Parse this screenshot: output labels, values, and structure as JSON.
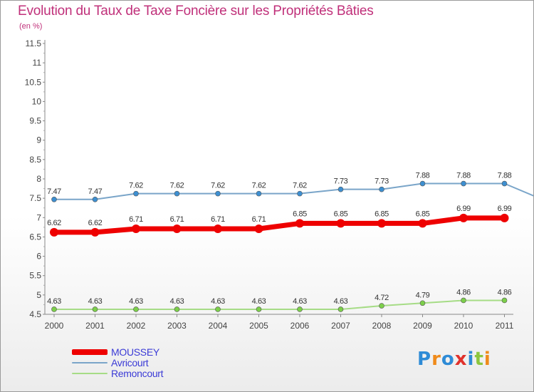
{
  "title": "Evolution du Taux de Taxe Foncière sur les Propriétés Bâties",
  "subtitle": "(en %)",
  "logo_text": "Proxiti",
  "colors": {
    "title": "#c0307a",
    "mousse": "#ee0000",
    "avricourt": "#7aa5c9",
    "remoncourt": "#a6dc86",
    "legend_text": "#3b3bd6"
  },
  "chart_data": {
    "type": "line",
    "title": "Evolution du Taux de Taxe Foncière sur les Propriétés Bâties",
    "ylabel": "(en %)",
    "xlabel": "",
    "ylim": [
      4.5,
      11.5
    ],
    "yticks": [
      "4.5",
      "5",
      "5.5",
      "6",
      "6.5",
      "7",
      "7.5",
      "8",
      "8.5",
      "9",
      "9.5",
      "10",
      "10.5",
      "11",
      "11.5"
    ],
    "categories": [
      "2000",
      "2001",
      "2002",
      "2003",
      "2004",
      "2005",
      "2006",
      "2007",
      "2008",
      "2009",
      "2010",
      "2011"
    ],
    "legend_position": "bottom-left",
    "grid": false,
    "series": [
      {
        "name": "MOUSSEY",
        "color": "#ee0000",
        "values": [
          6.62,
          6.62,
          6.71,
          6.71,
          6.71,
          6.71,
          6.85,
          6.85,
          6.85,
          6.85,
          6.99,
          6.99
        ],
        "labels": [
          "6.62",
          "6.62",
          "6.71",
          "6.71",
          "6.71",
          "6.71",
          "6.85",
          "6.85",
          "6.85",
          "6.85",
          "6.99",
          "6.99"
        ]
      },
      {
        "name": "Avricourt",
        "color": "#7aa5c9",
        "values": [
          7.47,
          7.47,
          7.62,
          7.62,
          7.62,
          7.62,
          7.62,
          7.73,
          7.73,
          7.88,
          7.88,
          7.88
        ],
        "labels": [
          "7.47",
          "7.47",
          "7.62",
          "7.62",
          "7.62",
          "7.62",
          "7.62",
          "7.73",
          "7.73",
          "7.88",
          "7.88",
          "7.88"
        ]
      },
      {
        "name": "Remoncourt",
        "color": "#a6dc86",
        "values": [
          4.63,
          4.63,
          4.63,
          4.63,
          4.63,
          4.63,
          4.63,
          4.63,
          4.72,
          4.79,
          4.86,
          4.86
        ],
        "labels": [
          "4.63",
          "4.63",
          "4.63",
          "4.63",
          "4.63",
          "4.63",
          "4.63",
          "4.63",
          "4.72",
          "4.79",
          "4.86",
          "4.86"
        ]
      }
    ]
  }
}
